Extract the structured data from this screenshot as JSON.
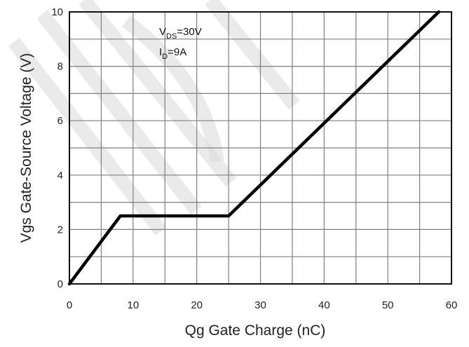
{
  "chart_data": {
    "type": "line",
    "xlabel": "Qg Gate Charge (nC)",
    "ylabel": "Vgs Gate-Source Voltage (V)",
    "xlim": [
      0,
      60
    ],
    "ylim": [
      0,
      10
    ],
    "x_ticks": [
      0,
      10,
      20,
      30,
      40,
      50,
      60
    ],
    "y_ticks": [
      0,
      2,
      4,
      6,
      8,
      10
    ],
    "grid": true,
    "series": [
      {
        "x": [
          0,
          8,
          25,
          58
        ],
        "y": [
          0,
          2.5,
          2.5,
          10
        ],
        "color": "#000000"
      }
    ],
    "annotations": {
      "vds": {
        "symbol": "V",
        "subscript": "DS",
        "value": "=30V"
      },
      "id": {
        "symbol": "I",
        "subscript": "D",
        "value": "=9A"
      }
    }
  }
}
